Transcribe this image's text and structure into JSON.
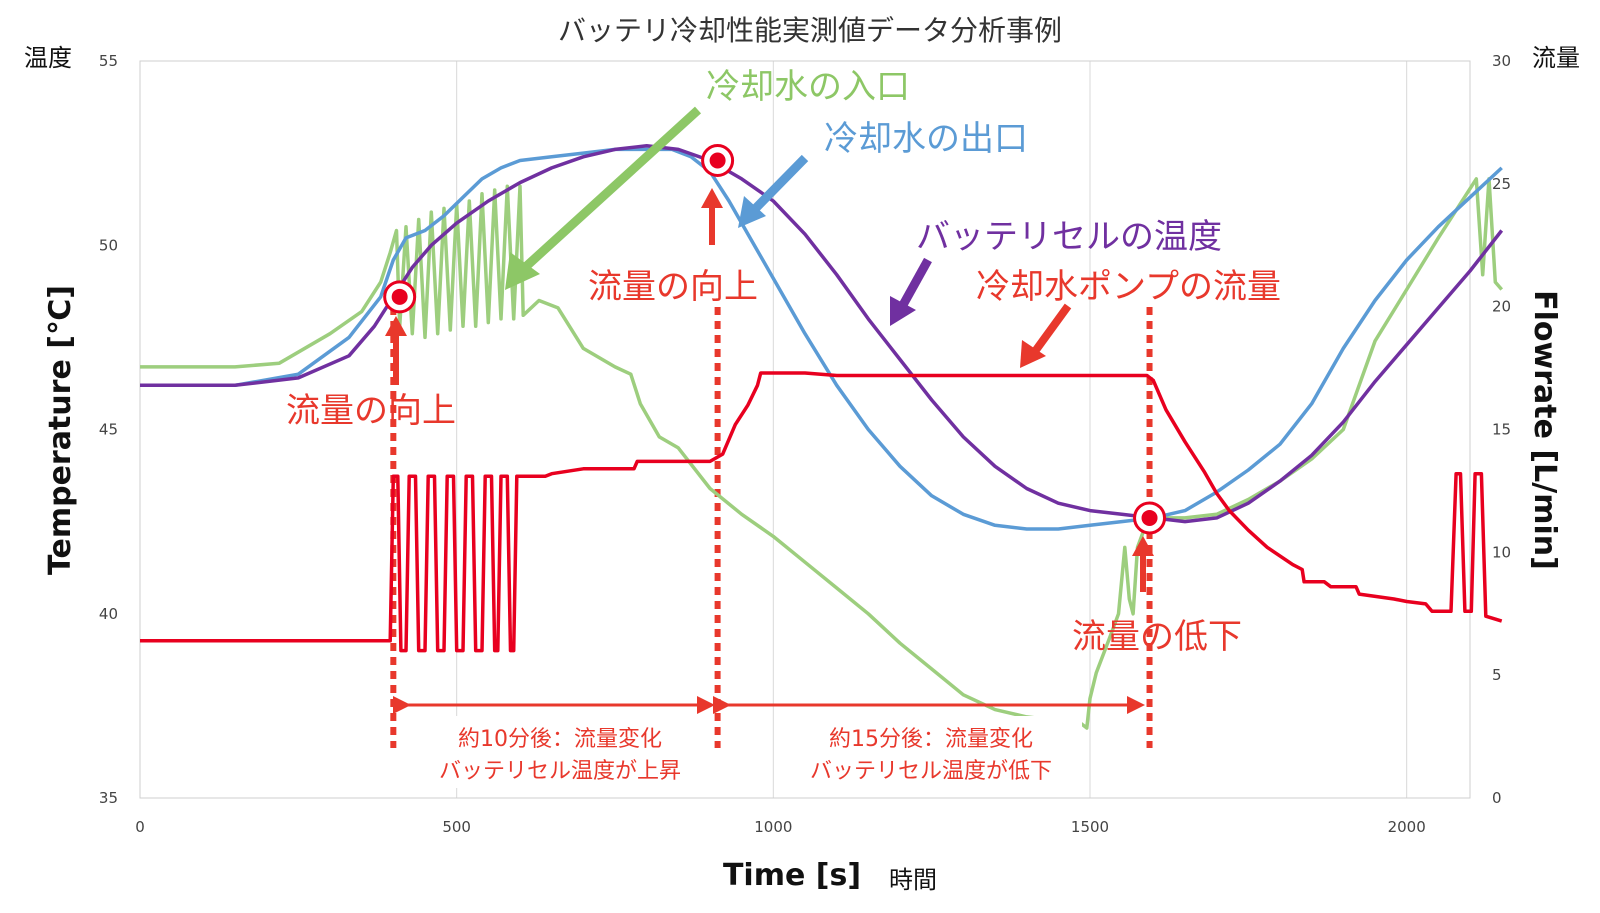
{
  "chart_data": {
    "type": "line",
    "title": "バッテリ冷却性能実測値データ分析事例",
    "xlabel": "Time [s]",
    "xlabel_jp": "時間",
    "ylabel_left": "Temperature [℃]",
    "ylabel_left_jp": "温度",
    "ylabel_right": "Flowrate [L/min]",
    "ylabel_right_jp": "流量",
    "xlim": [
      0,
      2100
    ],
    "ylim_left": [
      35,
      55
    ],
    "ylim_right": [
      0,
      30
    ],
    "x_ticks": [
      0,
      500,
      1000,
      1500,
      2000
    ],
    "y_left_ticks": [
      35,
      40,
      45,
      50,
      55
    ],
    "y_right_ticks": [
      0,
      5,
      10,
      15,
      20,
      25,
      30
    ],
    "grid": "vertical",
    "series": [
      {
        "name": "冷却水の入口",
        "axis": "left",
        "color": "#9dce7e",
        "points": [
          [
            0,
            46.7
          ],
          [
            150,
            46.7
          ],
          [
            220,
            46.8
          ],
          [
            300,
            47.6
          ],
          [
            350,
            48.2
          ],
          [
            380,
            49.0
          ],
          [
            395,
            49.8
          ],
          [
            405,
            50.4
          ],
          [
            410,
            47.8
          ],
          [
            420,
            50.5
          ],
          [
            430,
            47.6
          ],
          [
            440,
            50.7
          ],
          [
            450,
            47.5
          ],
          [
            460,
            50.9
          ],
          [
            470,
            47.6
          ],
          [
            480,
            51.0
          ],
          [
            490,
            47.7
          ],
          [
            500,
            51.1
          ],
          [
            510,
            47.8
          ],
          [
            520,
            51.2
          ],
          [
            530,
            47.8
          ],
          [
            540,
            51.4
          ],
          [
            550,
            47.9
          ],
          [
            560,
            51.5
          ],
          [
            570,
            48.0
          ],
          [
            580,
            51.6
          ],
          [
            590,
            48.0
          ],
          [
            600,
            51.6
          ],
          [
            605,
            48.1
          ],
          [
            630,
            48.5
          ],
          [
            660,
            48.3
          ],
          [
            700,
            47.2
          ],
          [
            750,
            46.7
          ],
          [
            775,
            46.5
          ],
          [
            790,
            45.7
          ],
          [
            820,
            44.8
          ],
          [
            850,
            44.5
          ],
          [
            900,
            43.4
          ],
          [
            950,
            42.7
          ],
          [
            1000,
            42.1
          ],
          [
            1050,
            41.4
          ],
          [
            1100,
            40.7
          ],
          [
            1150,
            40.0
          ],
          [
            1200,
            39.2
          ],
          [
            1250,
            38.5
          ],
          [
            1300,
            37.8
          ],
          [
            1350,
            37.4
          ],
          [
            1400,
            37.2
          ],
          [
            1450,
            37.1
          ],
          [
            1480,
            37.1
          ],
          [
            1495,
            36.9
          ],
          [
            1500,
            37.7
          ],
          [
            1510,
            38.4
          ],
          [
            1530,
            39.3
          ],
          [
            1545,
            40.0
          ],
          [
            1555,
            41.8
          ],
          [
            1562,
            40.4
          ],
          [
            1568,
            40.0
          ],
          [
            1575,
            41.8
          ],
          [
            1590,
            42.5
          ],
          [
            1600,
            42.6
          ],
          [
            1650,
            42.6
          ],
          [
            1700,
            42.7
          ],
          [
            1750,
            43.1
          ],
          [
            1800,
            43.6
          ],
          [
            1850,
            44.2
          ],
          [
            1900,
            45.0
          ],
          [
            1950,
            47.4
          ],
          [
            2000,
            48.8
          ],
          [
            2050,
            50.2
          ],
          [
            2080,
            51.0
          ],
          [
            2110,
            51.8
          ],
          [
            2120,
            49.2
          ],
          [
            2130,
            51.8
          ],
          [
            2140,
            49.0
          ],
          [
            2150,
            48.8
          ]
        ]
      },
      {
        "name": "冷却水の出口",
        "axis": "left",
        "color": "#5b9bd5",
        "points": [
          [
            0,
            46.2
          ],
          [
            150,
            46.2
          ],
          [
            250,
            46.5
          ],
          [
            330,
            47.5
          ],
          [
            380,
            48.6
          ],
          [
            400,
            49.6
          ],
          [
            420,
            50.2
          ],
          [
            450,
            50.4
          ],
          [
            480,
            50.8
          ],
          [
            510,
            51.3
          ],
          [
            540,
            51.8
          ],
          [
            570,
            52.1
          ],
          [
            600,
            52.3
          ],
          [
            650,
            52.4
          ],
          [
            700,
            52.5
          ],
          [
            750,
            52.6
          ],
          [
            800,
            52.6
          ],
          [
            840,
            52.6
          ],
          [
            870,
            52.4
          ],
          [
            900,
            52.0
          ],
          [
            930,
            51.2
          ],
          [
            960,
            50.3
          ],
          [
            1000,
            49.1
          ],
          [
            1050,
            47.6
          ],
          [
            1100,
            46.2
          ],
          [
            1150,
            45.0
          ],
          [
            1200,
            44.0
          ],
          [
            1250,
            43.2
          ],
          [
            1300,
            42.7
          ],
          [
            1350,
            42.4
          ],
          [
            1400,
            42.3
          ],
          [
            1450,
            42.3
          ],
          [
            1500,
            42.4
          ],
          [
            1550,
            42.5
          ],
          [
            1600,
            42.6
          ],
          [
            1650,
            42.8
          ],
          [
            1700,
            43.3
          ],
          [
            1750,
            43.9
          ],
          [
            1800,
            44.6
          ],
          [
            1850,
            45.7
          ],
          [
            1900,
            47.2
          ],
          [
            1950,
            48.5
          ],
          [
            2000,
            49.6
          ],
          [
            2050,
            50.5
          ],
          [
            2100,
            51.3
          ],
          [
            2150,
            52.1
          ]
        ]
      },
      {
        "name": "バッテリセルの温度",
        "axis": "left",
        "color": "#7030a0",
        "points": [
          [
            0,
            46.2
          ],
          [
            150,
            46.2
          ],
          [
            250,
            46.4
          ],
          [
            330,
            47.0
          ],
          [
            370,
            47.8
          ],
          [
            400,
            48.6
          ],
          [
            430,
            49.4
          ],
          [
            460,
            50.0
          ],
          [
            500,
            50.6
          ],
          [
            550,
            51.2
          ],
          [
            600,
            51.7
          ],
          [
            650,
            52.1
          ],
          [
            700,
            52.4
          ],
          [
            750,
            52.6
          ],
          [
            800,
            52.7
          ],
          [
            850,
            52.6
          ],
          [
            900,
            52.3
          ],
          [
            950,
            51.8
          ],
          [
            1000,
            51.2
          ],
          [
            1050,
            50.3
          ],
          [
            1100,
            49.2
          ],
          [
            1150,
            48.0
          ],
          [
            1200,
            46.9
          ],
          [
            1250,
            45.8
          ],
          [
            1300,
            44.8
          ],
          [
            1350,
            44.0
          ],
          [
            1400,
            43.4
          ],
          [
            1450,
            43.0
          ],
          [
            1500,
            42.8
          ],
          [
            1550,
            42.7
          ],
          [
            1600,
            42.6
          ],
          [
            1650,
            42.5
          ],
          [
            1700,
            42.6
          ],
          [
            1750,
            43.0
          ],
          [
            1800,
            43.6
          ],
          [
            1850,
            44.3
          ],
          [
            1900,
            45.2
          ],
          [
            1950,
            46.3
          ],
          [
            2000,
            47.3
          ],
          [
            2050,
            48.3
          ],
          [
            2100,
            49.3
          ],
          [
            2150,
            50.4
          ]
        ]
      },
      {
        "name": "冷却水ポンプの流量",
        "axis": "right",
        "color": "#e8001f",
        "points": [
          [
            0,
            6.4
          ],
          [
            395,
            6.4
          ],
          [
            400,
            13.1
          ],
          [
            407,
            13.1
          ],
          [
            412,
            6.0
          ],
          [
            420,
            6.0
          ],
          [
            425,
            13.1
          ],
          [
            435,
            13.1
          ],
          [
            440,
            6.0
          ],
          [
            450,
            6.0
          ],
          [
            455,
            13.1
          ],
          [
            465,
            13.1
          ],
          [
            470,
            6.0
          ],
          [
            480,
            6.0
          ],
          [
            485,
            13.1
          ],
          [
            495,
            13.1
          ],
          [
            500,
            6.0
          ],
          [
            510,
            6.0
          ],
          [
            515,
            13.1
          ],
          [
            525,
            13.1
          ],
          [
            530,
            6.0
          ],
          [
            540,
            6.0
          ],
          [
            545,
            13.1
          ],
          [
            555,
            13.1
          ],
          [
            560,
            6.0
          ],
          [
            565,
            6.0
          ],
          [
            570,
            13.1
          ],
          [
            580,
            13.1
          ],
          [
            585,
            6.0
          ],
          [
            590,
            6.0
          ],
          [
            595,
            13.1
          ],
          [
            610,
            13.1
          ],
          [
            640,
            13.1
          ],
          [
            650,
            13.2
          ],
          [
            700,
            13.4
          ],
          [
            780,
            13.4
          ],
          [
            785,
            13.7
          ],
          [
            900,
            13.7
          ],
          [
            920,
            14.0
          ],
          [
            940,
            15.2
          ],
          [
            960,
            16.0
          ],
          [
            975,
            16.8
          ],
          [
            980,
            17.3
          ],
          [
            1050,
            17.3
          ],
          [
            1100,
            17.2
          ],
          [
            1200,
            17.2
          ],
          [
            1300,
            17.2
          ],
          [
            1400,
            17.2
          ],
          [
            1500,
            17.2
          ],
          [
            1550,
            17.2
          ],
          [
            1590,
            17.2
          ],
          [
            1600,
            17.0
          ],
          [
            1620,
            15.8
          ],
          [
            1650,
            14.5
          ],
          [
            1680,
            13.3
          ],
          [
            1700,
            12.4
          ],
          [
            1720,
            11.7
          ],
          [
            1750,
            10.9
          ],
          [
            1780,
            10.2
          ],
          [
            1820,
            9.5
          ],
          [
            1835,
            9.3
          ],
          [
            1838,
            8.8
          ],
          [
            1870,
            8.8
          ],
          [
            1880,
            8.6
          ],
          [
            1920,
            8.6
          ],
          [
            1925,
            8.3
          ],
          [
            1980,
            8.1
          ],
          [
            2000,
            8.0
          ],
          [
            2030,
            7.9
          ],
          [
            2040,
            7.6
          ],
          [
            2070,
            7.6
          ],
          [
            2078,
            13.2
          ],
          [
            2085,
            13.2
          ],
          [
            2092,
            7.6
          ],
          [
            2102,
            7.6
          ],
          [
            2108,
            13.2
          ],
          [
            2118,
            13.2
          ],
          [
            2125,
            7.4
          ],
          [
            2150,
            7.2
          ]
        ]
      }
    ],
    "markers": [
      {
        "x": 410,
        "axis": "left",
        "y": 48.6
      },
      {
        "x": 912,
        "axis": "left",
        "y": 52.3
      },
      {
        "x": 1594,
        "axis": "left",
        "y": 42.6
      }
    ],
    "vlines": [
      400,
      912,
      1594
    ],
    "annotations": [
      {
        "text": "冷却水の入口",
        "color": "#8dc766"
      },
      {
        "text": "冷却水の出口",
        "color": "#5b9bd5"
      },
      {
        "text": "バッテリセルの温度",
        "color": "#7030a0"
      },
      {
        "text": "冷却水ポンプの流量",
        "color": "#e8382c"
      },
      {
        "text": "流量の向上",
        "color": "#e8382c"
      },
      {
        "text": "流量の向上",
        "color": "#e8382c"
      },
      {
        "text": "流量の低下",
        "color": "#e8382c"
      }
    ],
    "spans": [
      {
        "line1": "約10分後：流量変化",
        "line2": "バッテリセル温度が上昇"
      },
      {
        "line1": "約15分後：流量変化",
        "line2": "バッテリセル温度が低下"
      }
    ]
  }
}
